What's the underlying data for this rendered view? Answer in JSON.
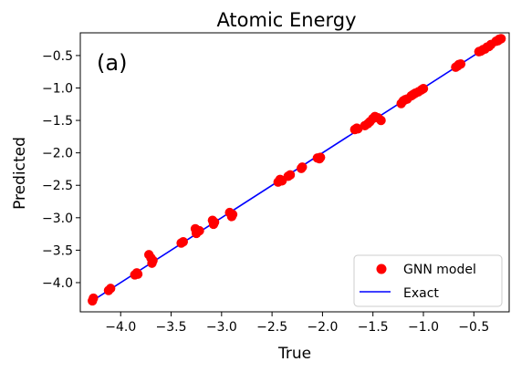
{
  "chart_data": {
    "type": "scatter",
    "title": "Atomic Energy",
    "xlabel": "True",
    "ylabel": "Predicted",
    "panel_label": "(a)",
    "xlim": [
      -4.4,
      -0.15
    ],
    "ylim": [
      -4.45,
      -0.15
    ],
    "xticks": [
      -4.0,
      -3.5,
      -3.0,
      -2.5,
      -2.0,
      -1.5,
      -1.0,
      -0.5
    ],
    "yticks": [
      -4.0,
      -3.5,
      -3.0,
      -2.5,
      -2.0,
      -1.5,
      -1.0,
      -0.5
    ],
    "xtick_labels": [
      "−4.0",
      "−3.5",
      "−3.0",
      "−2.5",
      "−2.0",
      "−1.5",
      "−1.0",
      "−0.5"
    ],
    "ytick_labels": [
      "−4.0",
      "−3.5",
      "−3.0",
      "−2.5",
      "−2.0",
      "−1.5",
      "−1.0",
      "−0.5"
    ],
    "grid": false,
    "legend_position": "bottom-right",
    "series": [
      {
        "name": "GNN model",
        "kind": "scatter",
        "color": "#ff0000",
        "points": [
          [
            -4.28,
            -4.28
          ],
          [
            -4.27,
            -4.24
          ],
          [
            -4.12,
            -4.12
          ],
          [
            -4.1,
            -4.09
          ],
          [
            -3.86,
            -3.88
          ],
          [
            -3.84,
            -3.85
          ],
          [
            -3.83,
            -3.87
          ],
          [
            -3.72,
            -3.57
          ],
          [
            -3.7,
            -3.62
          ],
          [
            -3.69,
            -3.7
          ],
          [
            -3.68,
            -3.66
          ],
          [
            -3.4,
            -3.39
          ],
          [
            -3.38,
            -3.37
          ],
          [
            -3.26,
            -3.17
          ],
          [
            -3.25,
            -3.24
          ],
          [
            -3.24,
            -3.21
          ],
          [
            -3.22,
            -3.2
          ],
          [
            -3.09,
            -3.04
          ],
          [
            -3.08,
            -3.1
          ],
          [
            -3.07,
            -3.07
          ],
          [
            -2.92,
            -2.92
          ],
          [
            -2.9,
            -2.98
          ],
          [
            -2.89,
            -2.95
          ],
          [
            -2.44,
            -2.45
          ],
          [
            -2.42,
            -2.41
          ],
          [
            -2.4,
            -2.43
          ],
          [
            -2.34,
            -2.36
          ],
          [
            -2.32,
            -2.34
          ],
          [
            -2.21,
            -2.24
          ],
          [
            -2.2,
            -2.22
          ],
          [
            -2.05,
            -2.08
          ],
          [
            -2.03,
            -2.09
          ],
          [
            -2.02,
            -2.07
          ],
          [
            -1.68,
            -1.64
          ],
          [
            -1.66,
            -1.62
          ],
          [
            -1.65,
            -1.63
          ],
          [
            -1.58,
            -1.58
          ],
          [
            -1.55,
            -1.55
          ],
          [
            -1.53,
            -1.52
          ],
          [
            -1.5,
            -1.47
          ],
          [
            -1.48,
            -1.44
          ],
          [
            -1.45,
            -1.46
          ],
          [
            -1.42,
            -1.5
          ],
          [
            -1.22,
            -1.24
          ],
          [
            -1.2,
            -1.2
          ],
          [
            -1.18,
            -1.18
          ],
          [
            -1.16,
            -1.17
          ],
          [
            -1.12,
            -1.12
          ],
          [
            -1.1,
            -1.1
          ],
          [
            -1.08,
            -1.08
          ],
          [
            -1.05,
            -1.06
          ],
          [
            -1.02,
            -1.03
          ],
          [
            -1.0,
            -1.01
          ],
          [
            -0.68,
            -0.68
          ],
          [
            -0.66,
            -0.66
          ],
          [
            -0.65,
            -0.64
          ],
          [
            -0.63,
            -0.63
          ],
          [
            -0.45,
            -0.44
          ],
          [
            -0.43,
            -0.43
          ],
          [
            -0.41,
            -0.41
          ],
          [
            -0.39,
            -0.4
          ],
          [
            -0.37,
            -0.37
          ],
          [
            -0.35,
            -0.36
          ],
          [
            -0.33,
            -0.33
          ],
          [
            -0.28,
            -0.28
          ],
          [
            -0.26,
            -0.27
          ],
          [
            -0.25,
            -0.25
          ],
          [
            -0.23,
            -0.24
          ]
        ]
      },
      {
        "name": "Exact",
        "kind": "line",
        "color": "#0000ff",
        "x": [
          -4.3,
          -0.22
        ],
        "y": [
          -4.3,
          -0.22
        ]
      }
    ]
  }
}
